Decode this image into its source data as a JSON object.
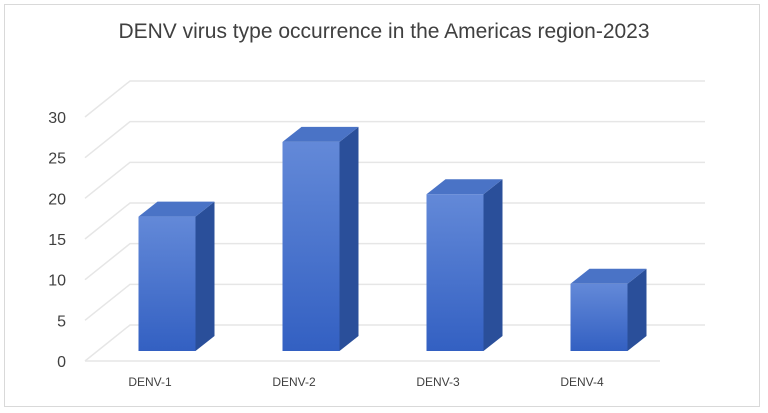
{
  "chart_data": {
    "type": "bar",
    "title": "DENV virus type occurrence in the Americas region-2023",
    "categories": [
      "DENV-1",
      "DENV-2",
      "DENV-3",
      "DENV-4"
    ],
    "values": [
      18,
      28,
      21,
      9
    ],
    "ylim": [
      0,
      30
    ],
    "yticks": [
      0,
      5,
      10,
      15,
      20,
      25,
      30
    ],
    "xlabel": "",
    "ylabel": "",
    "grid": true,
    "style": "3d-column",
    "colors": {
      "bar_front_top": "#5f87d6",
      "bar_front_bottom": "#3561c0",
      "bar_side": "#2a4f9a",
      "bar_top": "#4a73c6",
      "grid": "#e6e6e6",
      "text": "#404040"
    }
  }
}
